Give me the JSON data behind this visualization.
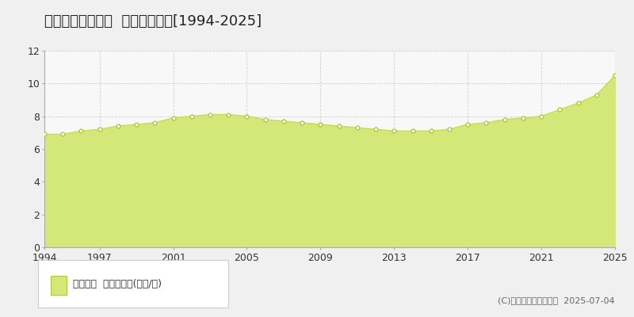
{
  "title": "紫波郡紫波町平沢  公示地価推移[1994-2025]",
  "years": [
    1994,
    1995,
    1996,
    1997,
    1998,
    1999,
    2000,
    2001,
    2002,
    2003,
    2004,
    2005,
    2006,
    2007,
    2008,
    2009,
    2010,
    2011,
    2012,
    2013,
    2014,
    2015,
    2016,
    2017,
    2018,
    2019,
    2020,
    2021,
    2022,
    2023,
    2024,
    2025
  ],
  "values": [
    6.9,
    6.9,
    7.1,
    7.2,
    7.4,
    7.5,
    7.6,
    7.9,
    8.0,
    8.1,
    8.1,
    8.0,
    7.8,
    7.7,
    7.6,
    7.5,
    7.4,
    7.3,
    7.2,
    7.1,
    7.1,
    7.1,
    7.2,
    7.5,
    7.6,
    7.8,
    7.9,
    8.0,
    8.4,
    8.8,
    9.3,
    10.5
  ],
  "line_color": "#c8dc50",
  "fill_color": "#d4e87a",
  "marker_facecolor": "#ffffff",
  "marker_edgecolor": "#b0c840",
  "figure_bg_color": "#f0f0f0",
  "plot_bg_color": "#f8f8f8",
  "grid_color": "#cccccc",
  "ylim": [
    0,
    12
  ],
  "yticks": [
    0,
    2,
    4,
    6,
    8,
    10,
    12
  ],
  "xticks": [
    1994,
    1997,
    2001,
    2005,
    2009,
    2013,
    2017,
    2021,
    2025
  ],
  "xlim": [
    1994,
    2025
  ],
  "legend_label": "公示地価  平均坪単価(万円/坪)",
  "copyright_text": "(C)土地価格ドットコム  2025-07-04",
  "title_fontsize": 13,
  "tick_fontsize": 9,
  "legend_fontsize": 9,
  "copyright_fontsize": 8
}
